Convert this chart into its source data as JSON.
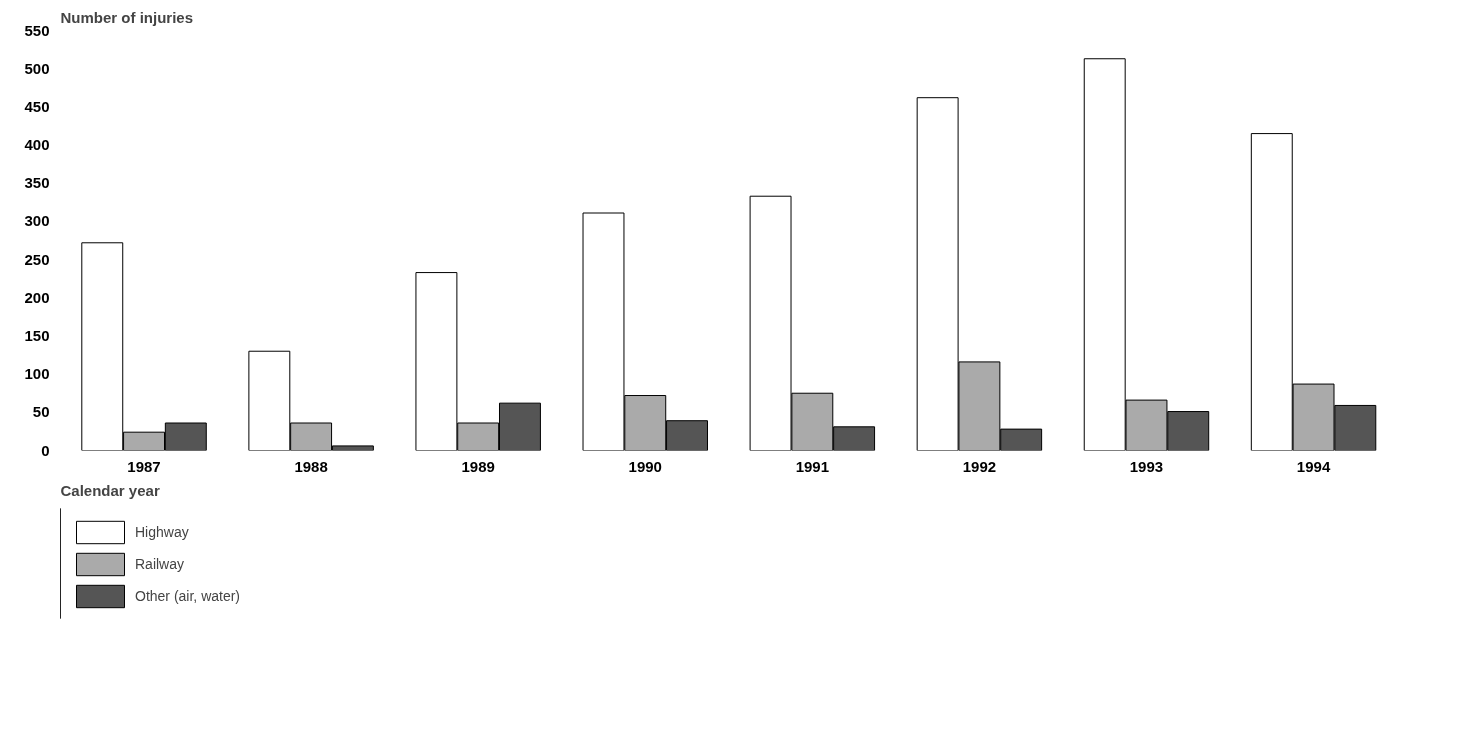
{
  "chart_data": {
    "type": "bar",
    "ylabel": "Number of injuries",
    "xlabel": "Calendar year",
    "categories": [
      "1987",
      "1988",
      "1989",
      "1990",
      "1991",
      "1992",
      "1993",
      "1994"
    ],
    "series": [
      {
        "name": "Highway",
        "color": "#ffffff",
        "values": [
          272,
          130,
          233,
          311,
          333,
          462,
          513,
          415
        ]
      },
      {
        "name": "Railway",
        "color": "#aaaaaa",
        "values": [
          24,
          36,
          36,
          72,
          75,
          116,
          66,
          87
        ]
      },
      {
        "name": "Other (air, water)",
        "color": "#555555",
        "values": [
          36,
          6,
          62,
          39,
          31,
          28,
          51,
          59
        ]
      }
    ],
    "ylim": [
      0,
      550
    ],
    "yticks": [
      0,
      50,
      100,
      150,
      200,
      250,
      300,
      350,
      400,
      450,
      500,
      550
    ],
    "grid": false,
    "legend": "bottom"
  }
}
